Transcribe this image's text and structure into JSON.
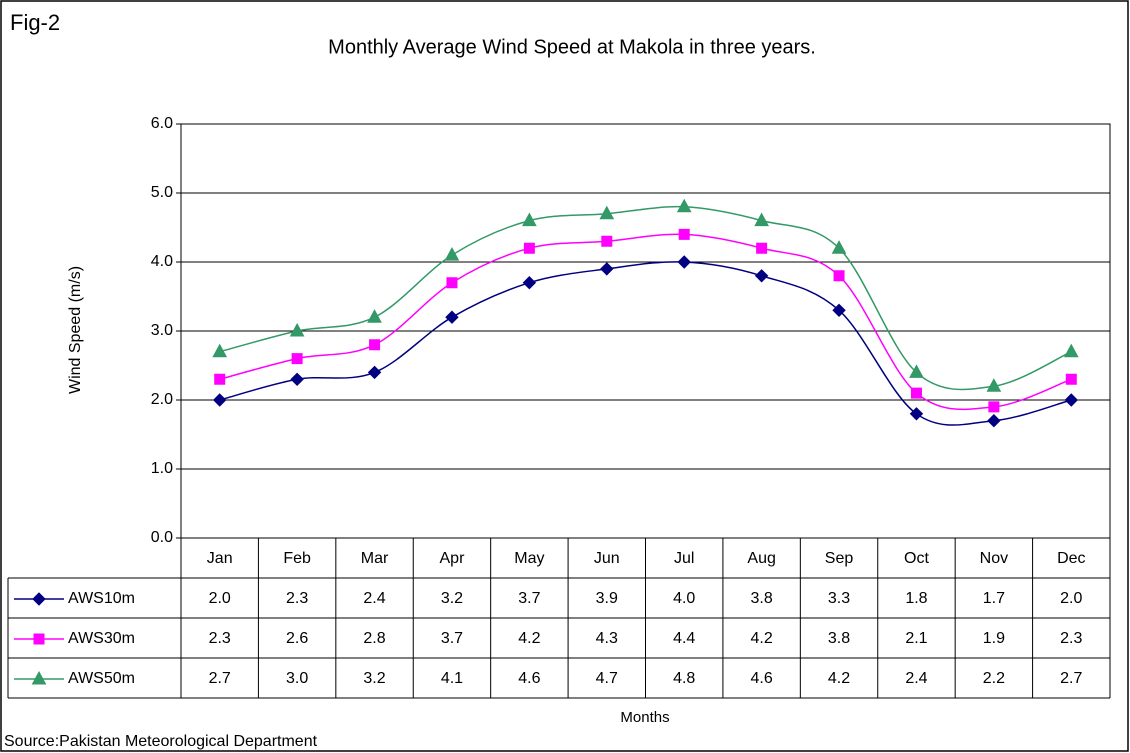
{
  "chart_data": {
    "type": "line",
    "label": "Fig-2",
    "title": "Monthly Average Wind Speed at Makola in three years.",
    "ylabel": "Wind Speed (m/s)",
    "xlabel": "Months",
    "source": "Source:Pakistan Meteorological Department",
    "categories": [
      "Jan",
      "Feb",
      "Mar",
      "Apr",
      "May",
      "Jun",
      "Jul",
      "Aug",
      "Sep",
      "Oct",
      "Nov",
      "Dec"
    ],
    "series": [
      {
        "name": "AWS10m",
        "color": "#000080",
        "marker": "diamond",
        "values": [
          2.0,
          2.3,
          2.4,
          3.2,
          3.7,
          3.9,
          4.0,
          3.8,
          3.3,
          1.8,
          1.7,
          2.0
        ],
        "value_labels": [
          "2.0",
          "2.3",
          "2.4",
          "3.2",
          "3.7",
          "3.9",
          "4.0",
          "3.8",
          "3.3",
          "1.8",
          "1.7",
          "2.0"
        ]
      },
      {
        "name": "AWS30m",
        "color": "#ff00ff",
        "marker": "square",
        "values": [
          2.3,
          2.6,
          2.8,
          3.7,
          4.2,
          4.3,
          4.4,
          4.2,
          3.8,
          2.1,
          1.9,
          2.3
        ],
        "value_labels": [
          "2.3",
          "2.6",
          "2.8",
          "3.7",
          "4.2",
          "4.3",
          "4.4",
          "4.2",
          "3.8",
          "2.1",
          "1.9",
          "2.3"
        ]
      },
      {
        "name": "AWS50m",
        "color": "#339966",
        "marker": "triangle",
        "values": [
          2.7,
          3.0,
          3.2,
          4.1,
          4.6,
          4.7,
          4.8,
          4.6,
          4.2,
          2.4,
          2.2,
          2.7
        ],
        "value_labels": [
          "2.7",
          "3.0",
          "3.2",
          "4.1",
          "4.6",
          "4.7",
          "4.8",
          "4.6",
          "4.2",
          "2.4",
          "2.2",
          "2.7"
        ]
      }
    ],
    "ylim": [
      0,
      6
    ],
    "yticks": [
      {
        "value": 0,
        "label": "0.0"
      },
      {
        "value": 1,
        "label": "1.0"
      },
      {
        "value": 2,
        "label": "2.0"
      },
      {
        "value": 3,
        "label": "3.0"
      },
      {
        "value": 4,
        "label": "4.0"
      },
      {
        "value": 5,
        "label": "5.0"
      },
      {
        "value": 6,
        "label": "6.0"
      }
    ],
    "grid": true
  }
}
